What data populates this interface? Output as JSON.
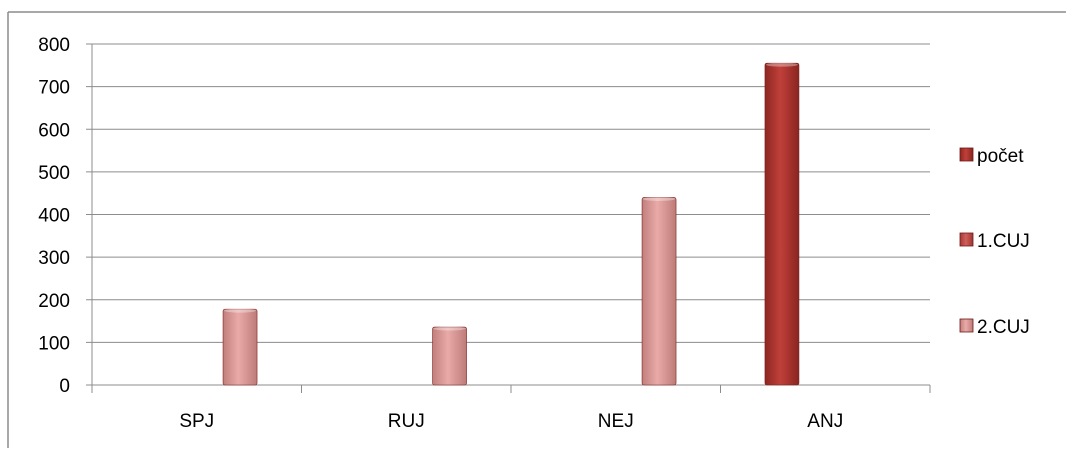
{
  "chart_data": {
    "type": "bar",
    "categories": [
      "SPJ",
      "RUJ",
      "NEJ",
      "ANJ"
    ],
    "series": [
      {
        "name": "počet",
        "color": "#a5302b",
        "values": [
          null,
          null,
          null,
          755
        ]
      },
      {
        "name": "1.CUJ",
        "color": "#c0504d",
        "values": [
          null,
          null,
          null,
          null
        ]
      },
      {
        "name": "2.CUJ",
        "color": "#d99694",
        "values": [
          178,
          136,
          440,
          null
        ]
      }
    ],
    "yticks": [
      "0",
      "100",
      "200",
      "300",
      "400",
      "500",
      "600",
      "700",
      "800"
    ],
    "ylim": [
      0,
      800
    ],
    "grid": true,
    "legend_position": "right"
  }
}
